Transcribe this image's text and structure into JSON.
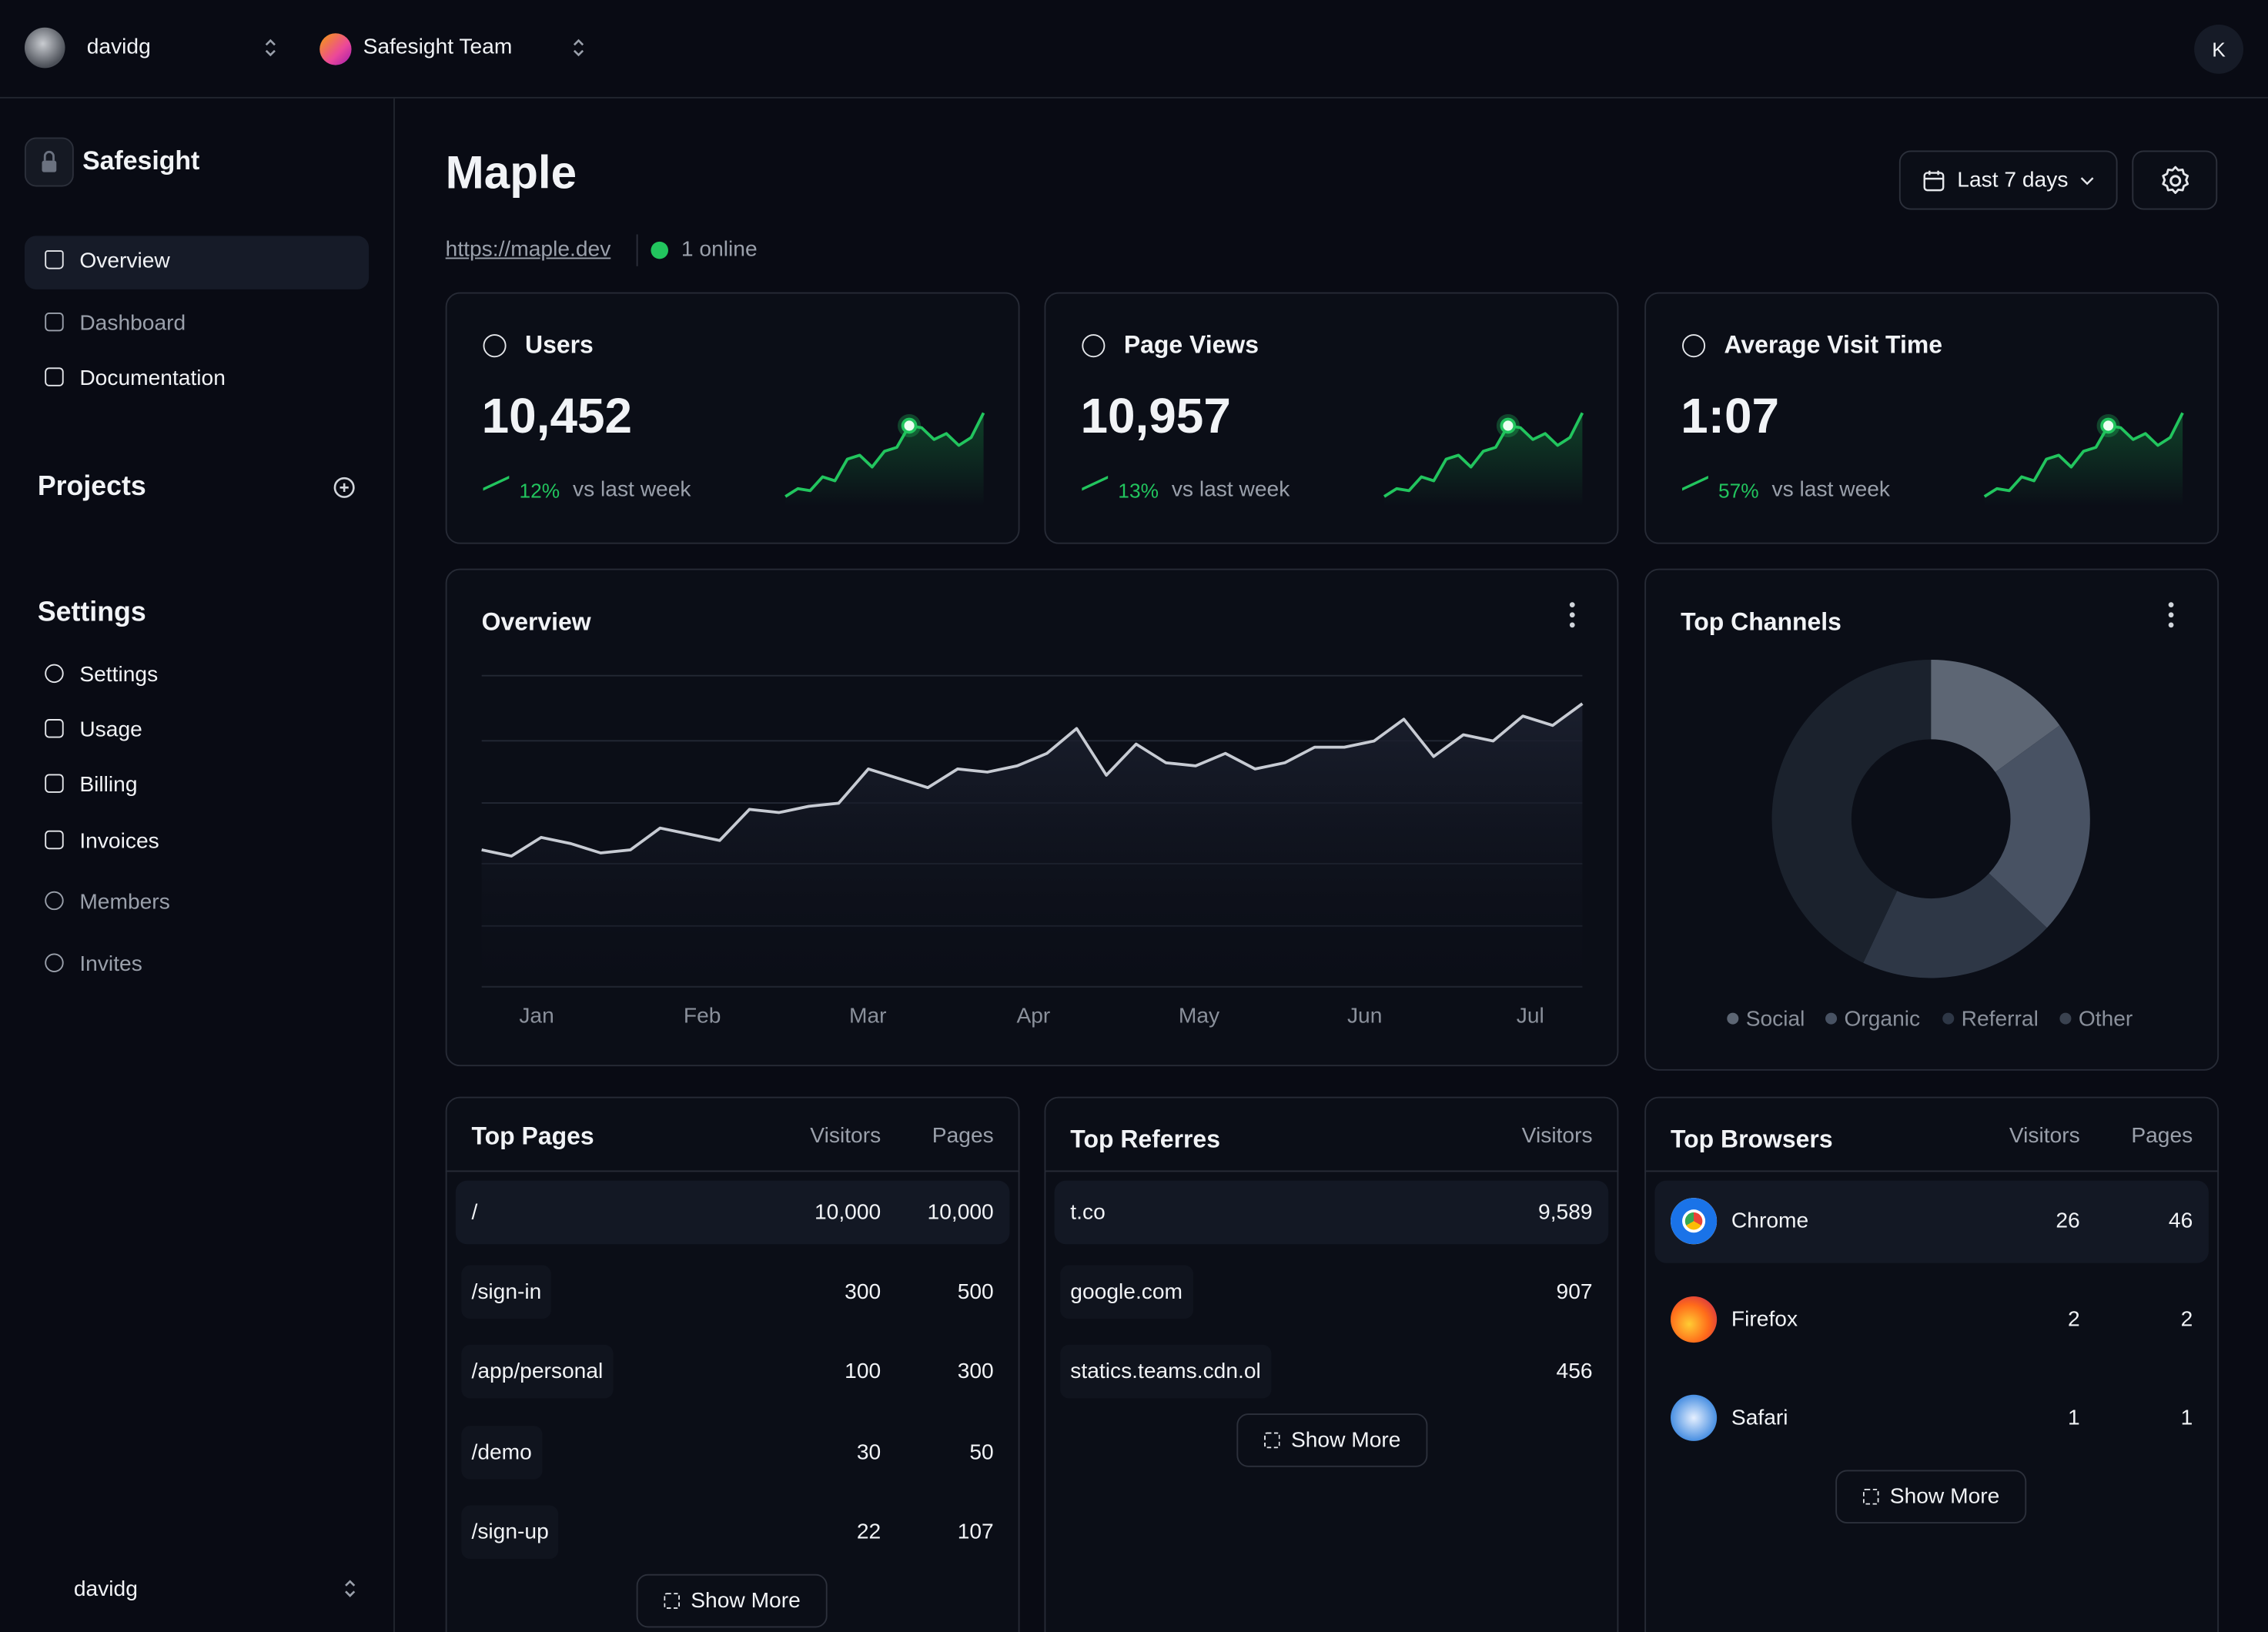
{
  "topbar": {
    "user": "davidg",
    "team": "Safesight Team",
    "account_initial": "K"
  },
  "sidebar": {
    "brand": "Safesight",
    "nav": [
      "Overview",
      "Dashboard",
      "Documentation"
    ],
    "projects_heading": "Projects",
    "settings_heading": "Settings",
    "settings_nav": [
      "Settings",
      "Usage",
      "Billing",
      "Invoices",
      "Members",
      "Invites"
    ],
    "footer_user": "davidg"
  },
  "header": {
    "title": "Maple",
    "url": "https://maple.dev",
    "online": "1 online",
    "range": "Last 7 days"
  },
  "stats": [
    {
      "label": "Users",
      "value": "10,452",
      "change": "12%",
      "compare": "vs last week",
      "trend": [
        10,
        18,
        16,
        30,
        26,
        48,
        52,
        40,
        56,
        60,
        82,
        80,
        68,
        74,
        62,
        70,
        95
      ]
    },
    {
      "label": "Page Views",
      "value": "10,957",
      "change": "13%",
      "compare": "vs last week",
      "trend": [
        10,
        18,
        16,
        30,
        26,
        48,
        52,
        40,
        56,
        60,
        82,
        80,
        68,
        74,
        62,
        70,
        95
      ]
    },
    {
      "label": "Average Visit Time",
      "value": "1:07",
      "change": "57%",
      "compare": "vs last week",
      "trend": [
        10,
        18,
        16,
        30,
        26,
        48,
        52,
        40,
        56,
        60,
        82,
        80,
        68,
        74,
        62,
        70,
        95
      ]
    }
  ],
  "overview": {
    "title": "Overview",
    "categories": [
      "Jan",
      "Feb",
      "Mar",
      "Apr",
      "May",
      "Jun",
      "Jul"
    ],
    "values": [
      44,
      42,
      48,
      46,
      43,
      44,
      51,
      49,
      47,
      57,
      56,
      58,
      59,
      70,
      67,
      64,
      70,
      69,
      71,
      75,
      83,
      68,
      78,
      72,
      71,
      75,
      70,
      72,
      77,
      77,
      79,
      86,
      74,
      81,
      79,
      87,
      84,
      91
    ],
    "ylim": [
      0,
      100
    ]
  },
  "channels": {
    "title": "Top Channels",
    "categories": [
      "Social",
      "Organic",
      "Referral",
      "Other"
    ],
    "values": [
      15,
      22,
      20,
      43
    ],
    "colors": [
      "#5d6674",
      "#485263",
      "#2e3746",
      "#1b222d"
    ]
  },
  "top_pages": {
    "title": "Top Pages",
    "columns": [
      "Visitors",
      "Pages"
    ],
    "rows": [
      [
        "/",
        "10,000",
        "10,000"
      ],
      [
        "/sign-in",
        "300",
        "500"
      ],
      [
        "/app/personal",
        "100",
        "300"
      ],
      [
        "/demo",
        "30",
        "50"
      ],
      [
        "/sign-up",
        "22",
        "107"
      ]
    ],
    "show_more": "Show More"
  },
  "top_referrers": {
    "title": "Top Referres",
    "columns": [
      "Visitors"
    ],
    "rows": [
      [
        "t.co",
        "9,589"
      ],
      [
        "google.com",
        "907"
      ],
      [
        "statics.teams.cdn.ol",
        "456"
      ]
    ],
    "show_more": "Show More"
  },
  "top_browsers": {
    "title": "Top Browsers",
    "columns": [
      "Visitors",
      "Pages"
    ],
    "rows": [
      [
        "Chrome",
        "26",
        "46"
      ],
      [
        "Firefox",
        "2",
        "2"
      ],
      [
        "Safari",
        "1",
        "1"
      ]
    ],
    "show_more": "Show More"
  }
}
